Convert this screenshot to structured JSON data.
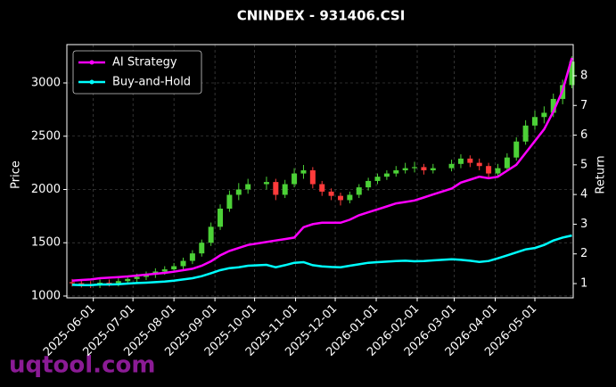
{
  "chart_data": {
    "type": "candlestick",
    "title": "CNINDEX - 931406.CSI",
    "ylabel": "Price",
    "y2label": "Return",
    "watermark": "uqtool.com",
    "grid": true,
    "legend": "upper left",
    "up_color": "#4cd137",
    "down_color": "#ff3b3b",
    "x": [
      "2025-05-16",
      "2025-05-23",
      "2025-05-30",
      "2025-06-06",
      "2025-06-13",
      "2025-06-20",
      "2025-06-27",
      "2025-07-04",
      "2025-07-11",
      "2025-07-18",
      "2025-07-25",
      "2025-08-01",
      "2025-08-08",
      "2025-08-15",
      "2025-08-22",
      "2025-08-29",
      "2025-09-05",
      "2025-09-12",
      "2025-09-19",
      "2025-09-26",
      "2025-10-10",
      "2025-10-17",
      "2025-10-24",
      "2025-10-31",
      "2025-11-07",
      "2025-11-14",
      "2025-11-21",
      "2025-11-28",
      "2025-12-05",
      "2025-12-12",
      "2025-12-19",
      "2025-12-26",
      "2026-01-02",
      "2026-01-09",
      "2026-01-16",
      "2026-01-23",
      "2026-01-30",
      "2026-02-06",
      "2026-02-13",
      "2026-02-27",
      "2026-03-06",
      "2026-03-13",
      "2026-03-20",
      "2026-03-27",
      "2026-04-03",
      "2026-04-10",
      "2026-04-17",
      "2026-04-24",
      "2026-05-01",
      "2026-05-08",
      "2026-05-15",
      "2026-05-22",
      "2026-05-29"
    ],
    "open": [
      1130,
      1120,
      1110,
      1105,
      1125,
      1120,
      1140,
      1160,
      1180,
      1200,
      1230,
      1250,
      1280,
      1330,
      1400,
      1500,
      1650,
      1820,
      1950,
      2000,
      2050,
      2070,
      1950,
      2050,
      2150,
      2180,
      2050,
      1980,
      1940,
      1900,
      1950,
      2020,
      2080,
      2120,
      2150,
      2180,
      2200,
      2210,
      2180,
      2200,
      2240,
      2290,
      2250,
      2220,
      2150,
      2200,
      2300,
      2450,
      2600,
      2680,
      2720,
      2850,
      2980
    ],
    "high": [
      1160,
      1150,
      1140,
      1155,
      1155,
      1170,
      1190,
      1210,
      1230,
      1260,
      1280,
      1310,
      1360,
      1430,
      1530,
      1690,
      1860,
      1990,
      2060,
      2100,
      2120,
      2100,
      2090,
      2200,
      2230,
      2210,
      2080,
      2010,
      1970,
      1980,
      2050,
      2110,
      2150,
      2180,
      2220,
      2250,
      2260,
      2240,
      2240,
      2280,
      2330,
      2320,
      2290,
      2250,
      2240,
      2340,
      2490,
      2650,
      2740,
      2780,
      2900,
      3030,
      3250
    ],
    "low": [
      1090,
      1080,
      1075,
      1075,
      1090,
      1090,
      1110,
      1130,
      1150,
      1170,
      1200,
      1220,
      1250,
      1300,
      1370,
      1470,
      1620,
      1790,
      1900,
      1960,
      2000,
      1900,
      1920,
      2020,
      2100,
      2010,
      1940,
      1900,
      1850,
      1870,
      1920,
      1990,
      2050,
      2090,
      2120,
      2150,
      2160,
      2140,
      2150,
      2170,
      2200,
      2210,
      2180,
      2110,
      2110,
      2170,
      2270,
      2420,
      2560,
      2620,
      2680,
      2800,
      2950
    ],
    "close": [
      1120,
      1110,
      1105,
      1125,
      1120,
      1140,
      1160,
      1180,
      1200,
      1230,
      1250,
      1280,
      1330,
      1400,
      1500,
      1650,
      1820,
      1950,
      2000,
      2050,
      2070,
      1950,
      2050,
      2150,
      2180,
      2050,
      1980,
      1940,
      1900,
      1950,
      2020,
      2080,
      2120,
      2150,
      2180,
      2200,
      2210,
      2180,
      2200,
      2240,
      2290,
      2250,
      2220,
      2150,
      2200,
      2300,
      2450,
      2600,
      2680,
      2720,
      2850,
      2980,
      3200
    ],
    "series": [
      {
        "name": "AI Strategy",
        "color": "#ff00ff",
        "axis": "y2",
        "values": [
          1.1,
          1.12,
          1.14,
          1.18,
          1.2,
          1.22,
          1.24,
          1.27,
          1.3,
          1.33,
          1.36,
          1.4,
          1.45,
          1.5,
          1.6,
          1.75,
          1.95,
          2.1,
          2.2,
          2.3,
          2.4,
          2.45,
          2.5,
          2.55,
          2.9,
          3.0,
          3.05,
          3.05,
          3.05,
          3.15,
          3.3,
          3.4,
          3.5,
          3.6,
          3.7,
          3.75,
          3.8,
          3.9,
          4.0,
          4.2,
          4.4,
          4.5,
          4.6,
          4.55,
          4.6,
          4.8,
          5.0,
          5.4,
          5.8,
          6.2,
          6.8,
          7.5,
          8.6
        ]
      },
      {
        "name": "Buy-and-Hold",
        "color": "#00ffff",
        "axis": "y2",
        "values": [
          0.96,
          0.95,
          0.95,
          0.97,
          0.97,
          0.98,
          1.0,
          1.02,
          1.03,
          1.05,
          1.07,
          1.1,
          1.14,
          1.18,
          1.25,
          1.35,
          1.45,
          1.52,
          1.55,
          1.6,
          1.63,
          1.55,
          1.62,
          1.7,
          1.72,
          1.62,
          1.58,
          1.56,
          1.55,
          1.6,
          1.65,
          1.7,
          1.72,
          1.74,
          1.76,
          1.77,
          1.75,
          1.76,
          1.78,
          1.82,
          1.8,
          1.77,
          1.73,
          1.76,
          1.85,
          1.95,
          2.05,
          2.15,
          2.2,
          2.3,
          2.45,
          2.55,
          2.62
        ]
      }
    ],
    "xlim": [
      "2025-05-12",
      "2026-05-30"
    ],
    "xticks": [
      "2025-06-01",
      "2025-07-01",
      "2025-08-01",
      "2025-09-01",
      "2025-10-01",
      "2025-11-01",
      "2025-12-01",
      "2026-01-01",
      "2026-02-01",
      "2026-03-01",
      "2026-04-01",
      "2026-05-01"
    ],
    "ylim": [
      983,
      3360
    ],
    "yticks": [
      1000,
      1500,
      2000,
      2500,
      3000
    ],
    "y2lim": [
      0.52,
      9.05
    ],
    "y2ticks": [
      1,
      2,
      3,
      4,
      5,
      6,
      7,
      8
    ]
  }
}
